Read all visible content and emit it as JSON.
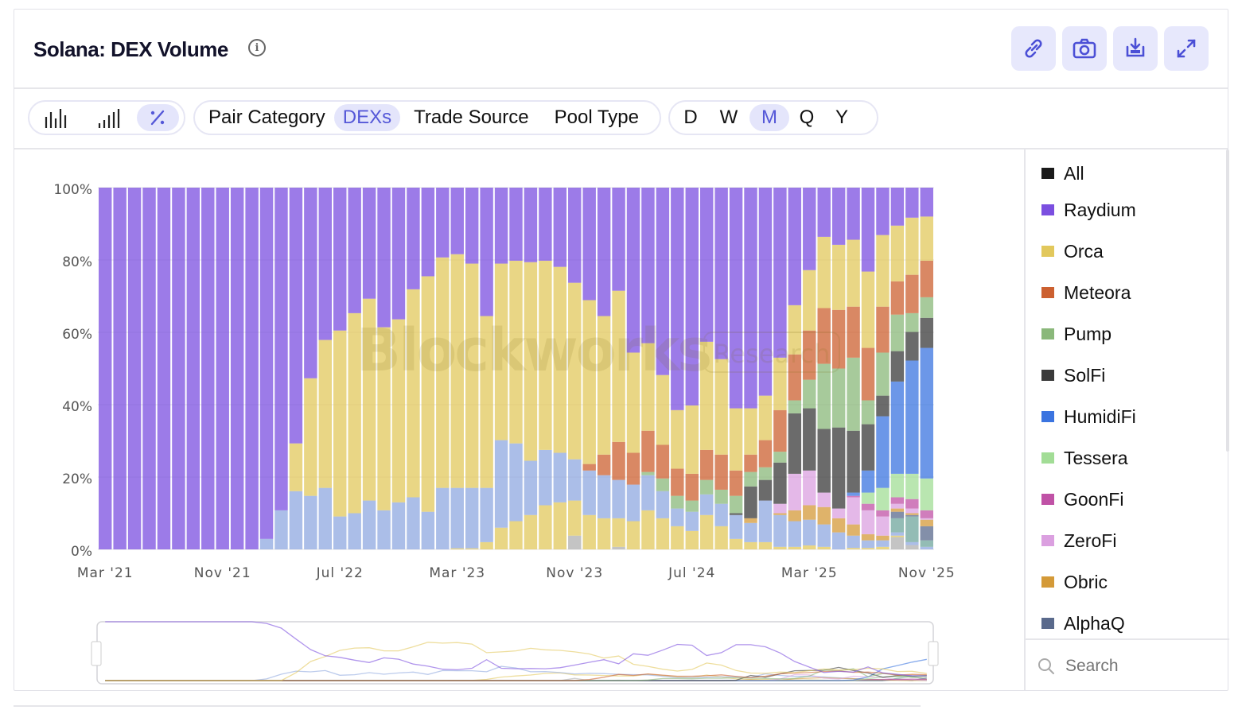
{
  "header": {
    "title": "Solana: DEX Volume",
    "info_icon": "info-icon",
    "buttons": [
      {
        "name": "copy-link-button",
        "icon": "link-icon"
      },
      {
        "name": "screenshot-button",
        "icon": "camera-icon"
      },
      {
        "name": "download-button",
        "icon": "download-icon"
      },
      {
        "name": "fullscreen-button",
        "icon": "expand-icon"
      }
    ],
    "accent": "#4b4fd6"
  },
  "toolbar": {
    "chart_types": [
      {
        "icon": "bar-chart-icon",
        "active": false
      },
      {
        "icon": "stacked-bar-icon",
        "active": false
      },
      {
        "icon": "percent-icon",
        "active": true
      }
    ],
    "groupings": [
      {
        "label": "Pair Category",
        "active": false
      },
      {
        "label": "DEXs",
        "active": true
      },
      {
        "label": "Trade Source",
        "active": false
      },
      {
        "label": "Pool Type",
        "active": false
      }
    ],
    "intervals": [
      {
        "label": "D",
        "active": false
      },
      {
        "label": "W",
        "active": false
      },
      {
        "label": "M",
        "active": true
      },
      {
        "label": "Q",
        "active": false
      },
      {
        "label": "Y",
        "active": false
      }
    ]
  },
  "watermark": {
    "brand": "Blockworks",
    "tag": "Research"
  },
  "legend": {
    "items": [
      {
        "label": "All",
        "color": "#1a1a1a"
      },
      {
        "label": "Raydium",
        "color": "#7b4fe0"
      },
      {
        "label": "Orca",
        "color": "#e2c85c"
      },
      {
        "label": "Meteora",
        "color": "#cc6030"
      },
      {
        "label": "Pump",
        "color": "#8ab87a"
      },
      {
        "label": "SolFi",
        "color": "#3a3a3a"
      },
      {
        "label": "HumidiFi",
        "color": "#3b74e0"
      },
      {
        "label": "Tessera",
        "color": "#a2dd96"
      },
      {
        "label": "GoonFi",
        "color": "#c052a6"
      },
      {
        "label": "ZeroFi",
        "color": "#dba0e0"
      },
      {
        "label": "Obric",
        "color": "#d49a38"
      },
      {
        "label": "AlphaQ",
        "color": "#5a6a8c"
      }
    ],
    "search_placeholder": "Search"
  },
  "chart_data": {
    "type": "bar",
    "stacked": true,
    "normalized": "percent",
    "categories": [
      "Mar '21",
      "Apr '21",
      "May '21",
      "Jun '21",
      "Jul '21",
      "Aug '21",
      "Sep '21",
      "Oct '21",
      "Nov '21",
      "Dec '21",
      "Jan '22",
      "Feb '22",
      "Mar '22",
      "Apr '22",
      "May '22",
      "Jun '22",
      "Jul '22",
      "Aug '22",
      "Sep '22",
      "Oct '22",
      "Nov '22",
      "Dec '22",
      "Jan '23",
      "Feb '23",
      "Mar '23",
      "Apr '23",
      "May '23",
      "Jun '23",
      "Jul '23",
      "Aug '23",
      "Sep '23",
      "Oct '23",
      "Nov '23",
      "Dec '23",
      "Jan '24",
      "Feb '24",
      "Mar '24",
      "Apr '24",
      "May '24",
      "Jun '24",
      "Jul '24",
      "Aug '24",
      "Sep '24",
      "Oct '24",
      "Nov '24",
      "Dec '24",
      "Jan '25",
      "Feb '25",
      "Mar '25",
      "Apr '25",
      "May '25",
      "Jun '25",
      "Jul '25",
      "Aug '25",
      "Sep '25",
      "Oct '25",
      "Nov '25"
    ],
    "x_tick_labels": [
      "Mar '21",
      "Nov '21",
      "Jul '22",
      "Mar '23",
      "Nov '23",
      "Jul '24",
      "Mar '25",
      "Nov '25"
    ],
    "y_tick_labels": [
      "0%",
      "20%",
      "40%",
      "60%",
      "80%",
      "100%"
    ],
    "ylim": [
      0,
      100
    ],
    "grid": true,
    "legend_position": "right",
    "series": [
      {
        "color": "#b0b0b0",
        "values": [
          0,
          0,
          0,
          0,
          0,
          0,
          0,
          0,
          0,
          0,
          0,
          0,
          0,
          0,
          0,
          0,
          0,
          0,
          0,
          0,
          0,
          0,
          0,
          0,
          0,
          0,
          0,
          0,
          0,
          0,
          0,
          0,
          3.8,
          0,
          0,
          0.7,
          0,
          0,
          0,
          0,
          0,
          0,
          0,
          0,
          0,
          0,
          0,
          0,
          0,
          0,
          0,
          0,
          0,
          0,
          3.4,
          1.2,
          0
        ]
      },
      {
        "color": "#e2c85c",
        "values": [
          0,
          0,
          0,
          0,
          0,
          0,
          0,
          0,
          0,
          0,
          0,
          0,
          0,
          0,
          0,
          0,
          0,
          0,
          0,
          0,
          0,
          0,
          0,
          0,
          0.3,
          0.3,
          2.0,
          6.0,
          7.8,
          9.5,
          12.2,
          13.0,
          9.7,
          9.5,
          8.6,
          7.9,
          7.8,
          10.8,
          8.6,
          6.4,
          5.1,
          9.5,
          6.4,
          2.9,
          2.0,
          2.0,
          0.7,
          0.7,
          1.1,
          0.7,
          0,
          0.4,
          0.4,
          0.7,
          0.4,
          0,
          0
        ]
      },
      {
        "color": "#8fa8e0",
        "values": [
          0,
          0,
          0,
          0,
          0,
          0,
          0,
          0,
          0,
          0,
          0,
          2.9,
          10.8,
          16.1,
          14.8,
          17.0,
          9.1,
          10.0,
          13.5,
          10.8,
          13.0,
          14.4,
          10.4,
          17.0,
          16.7,
          16.7,
          15.0,
          24.2,
          21.5,
          15.0,
          15.3,
          13.7,
          11.4,
          12.3,
          11.9,
          10.6,
          10.1,
          9.7,
          7.5,
          4.9,
          5.3,
          5.7,
          6.2,
          6.6,
          5.3,
          11.5,
          8.8,
          7.1,
          7.1,
          6.2,
          4.7,
          3.4,
          2.1,
          1.8,
          0.9,
          0.8,
          0.7
        ]
      },
      {
        "color": "#6fa59c",
        "values": [
          0,
          0,
          0,
          0,
          0,
          0,
          0,
          0,
          0,
          0,
          0,
          0,
          0,
          0,
          0,
          0,
          0,
          0,
          0,
          0,
          0,
          0,
          0,
          0,
          0,
          0,
          0,
          0,
          0,
          0,
          0,
          0,
          0,
          0,
          0,
          0,
          0,
          0,
          0,
          0,
          0,
          0,
          0,
          0,
          0,
          0,
          0,
          0,
          0,
          0,
          0,
          0,
          0,
          0,
          3.9,
          7.1,
          1.8
        ]
      },
      {
        "name": "AlphaQ",
        "color": "#5a6a8c",
        "values": [
          0,
          0,
          0,
          0,
          0,
          0,
          0,
          0,
          0,
          0,
          0,
          0,
          0,
          0,
          0,
          0,
          0,
          0,
          0,
          0,
          0,
          0,
          0,
          0,
          0,
          0,
          0,
          0,
          0,
          0,
          0,
          0,
          0,
          0,
          0,
          0,
          0,
          0,
          0,
          0,
          0,
          0,
          0,
          0,
          0,
          0,
          0,
          0,
          0,
          0,
          0,
          0,
          0,
          0,
          1.8,
          0.4,
          3.9
        ]
      },
      {
        "name": "Obric",
        "color": "#d49a38",
        "values": [
          0,
          0,
          0,
          0,
          0,
          0,
          0,
          0,
          0,
          0,
          0,
          0,
          0,
          0,
          0,
          0,
          0,
          0,
          0,
          0,
          0,
          0,
          0,
          0,
          0,
          0,
          0,
          0,
          0,
          0,
          0,
          0,
          0,
          0,
          0,
          0,
          0,
          0,
          0,
          0,
          0,
          0,
          0,
          0,
          1.3,
          0,
          0.5,
          3.0,
          4.0,
          4.8,
          3.9,
          3.1,
          1.7,
          1.3,
          0.9,
          0.5,
          1.8
        ]
      },
      {
        "name": "ZeroFi",
        "color": "#dba0e0",
        "values": [
          0,
          0,
          0,
          0,
          0,
          0,
          0,
          0,
          0,
          0,
          0,
          0,
          0,
          0,
          0,
          0,
          0,
          0,
          0,
          0,
          0,
          0,
          0,
          0,
          0,
          0,
          0,
          0,
          0,
          0,
          0,
          0,
          0,
          0,
          0,
          0,
          0,
          0,
          0,
          0,
          0,
          0,
          0,
          0,
          0,
          0,
          2.6,
          10.1,
          9.6,
          4.0,
          2.7,
          7.5,
          6.6,
          5.3,
          1.3,
          1.3,
          0.4
        ]
      },
      {
        "name": "GoonFi",
        "color": "#c052a6",
        "values": [
          0,
          0,
          0,
          0,
          0,
          0,
          0,
          0,
          0,
          0,
          0,
          0,
          0,
          0,
          0,
          0,
          0,
          0,
          0,
          0,
          0,
          0,
          0,
          0,
          0,
          0,
          0,
          0,
          0,
          0,
          0,
          0,
          0,
          0,
          0,
          0,
          0,
          0,
          0,
          0,
          0,
          0,
          0,
          0,
          0,
          0,
          0,
          0,
          0,
          0,
          0,
          0.4,
          1.8,
          1.7,
          1.8,
          2.6,
          2.2
        ]
      },
      {
        "name": "Tessera",
        "color": "#a2dd96",
        "values": [
          0,
          0,
          0,
          0,
          0,
          0,
          0,
          0,
          0,
          0,
          0,
          0,
          0,
          0,
          0,
          0,
          0,
          0,
          0,
          0,
          0,
          0,
          0,
          0,
          0,
          0,
          0,
          0,
          0,
          0,
          0,
          0,
          0,
          0,
          0,
          0,
          0,
          0,
          0,
          0,
          0,
          0,
          0,
          0,
          0,
          0,
          0,
          0,
          0,
          0,
          0,
          0,
          3.1,
          6.2,
          6.5,
          7.0,
          8.8
        ]
      },
      {
        "name": "HumidiFi",
        "color": "#3b74e0",
        "values": [
          0,
          0,
          0,
          0,
          0,
          0,
          0,
          0,
          0,
          0,
          0,
          0,
          0,
          0,
          0,
          0,
          0,
          0,
          0,
          0,
          0,
          0,
          0,
          0,
          0,
          0,
          0,
          0,
          0,
          0,
          0,
          0,
          0,
          0,
          0,
          0,
          0,
          0,
          0,
          0,
          0,
          0,
          0,
          0,
          0,
          0,
          0,
          0,
          0,
          0,
          0,
          0.9,
          6.1,
          19.8,
          25.5,
          31.3,
          36.1
        ]
      },
      {
        "name": "SolFi",
        "color": "#3a3a3a",
        "values": [
          0,
          0,
          0,
          0,
          0,
          0,
          0,
          0,
          0,
          0,
          0,
          0,
          0,
          0,
          0,
          0,
          0,
          0,
          0,
          0,
          0,
          0,
          0,
          0,
          0,
          0,
          0,
          0,
          0,
          0,
          0,
          0,
          0,
          0,
          0,
          0,
          0,
          0,
          0,
          0,
          0,
          0,
          0,
          0.5,
          8.8,
          5.7,
          11.4,
          16.7,
          17.2,
          17.6,
          22.4,
          17.1,
          12.8,
          5.7,
          8.4,
          7.9,
          8.3
        ]
      },
      {
        "name": "Pump",
        "color": "#8ab87a",
        "values": [
          0,
          0,
          0,
          0,
          0,
          0,
          0,
          0,
          0,
          0,
          0,
          0,
          0,
          0,
          0,
          0,
          0,
          0,
          0,
          0,
          0,
          0,
          0,
          0,
          0,
          0,
          0,
          0,
          0,
          0,
          0,
          0,
          0,
          0,
          0,
          0,
          0,
          0.9,
          3.5,
          3.5,
          3.1,
          4.0,
          3.9,
          4.8,
          4.0,
          3.5,
          3.0,
          3.6,
          7.9,
          18.0,
          16.3,
          20.2,
          6.6,
          11.9,
          10.1,
          5.2,
          5.7
        ]
      },
      {
        "name": "Meteora",
        "color": "#cc6030",
        "values": [
          0,
          0,
          0,
          0,
          0,
          0,
          0,
          0,
          0,
          0,
          0,
          0,
          0,
          0,
          0,
          0,
          0,
          0,
          0,
          0,
          0,
          0,
          0,
          0,
          0,
          0,
          0,
          0,
          0,
          0,
          0,
          0,
          0,
          1.8,
          5.7,
          10.5,
          8.8,
          11.4,
          9.3,
          7.5,
          7.4,
          8.3,
          9.7,
          7.0,
          4.8,
          7.5,
          11.5,
          12.7,
          13.6,
          15.4,
          16.2,
          14.1,
          14.5,
          12.7,
          9.2,
          10.6,
          10.1
        ]
      },
      {
        "name": "Orca",
        "color": "#e2c85c",
        "values": [
          0,
          0,
          0,
          0,
          0,
          0,
          0,
          0,
          0,
          0,
          0,
          0,
          0,
          13.2,
          32.5,
          40.9,
          51.4,
          55.3,
          55.8,
          50.6,
          50.6,
          57.5,
          65.1,
          63.7,
          64.6,
          62.0,
          47.5,
          48.8,
          50.5,
          54.9,
          52.3,
          51.4,
          48.8,
          45.3,
          38.3,
          41.8,
          27.7,
          24.2,
          19.3,
          16.2,
          18.9,
          29.9,
          26.4,
          17.2,
          12.8,
          12.3,
          14.5,
          13.6,
          16.7,
          19.7,
          18.0,
          18.5,
          21.1,
          19.8,
          15.4,
          15.8,
          12.2
        ]
      },
      {
        "name": "Raydium",
        "color": "#7b4fe0",
        "values": [
          100,
          100,
          100,
          100,
          100,
          100,
          100,
          100,
          100,
          100,
          100,
          97.1,
          89.2,
          70.7,
          52.7,
          42.1,
          39.5,
          34.7,
          30.7,
          38.6,
          36.4,
          28.1,
          24.5,
          19.3,
          18.4,
          21.0,
          35.5,
          21.0,
          20.2,
          20.6,
          20.2,
          21.9,
          26.3,
          31.1,
          35.5,
          28.5,
          45.6,
          43.0,
          51.8,
          61.5,
          60.2,
          42.6,
          47.4,
          61.0,
          61.0,
          57.5,
          47.0,
          32.5,
          22.8,
          13.6,
          15.8,
          14.4,
          23.2,
          13.1,
          10.5,
          8.3,
          8.0
        ]
      }
    ]
  }
}
